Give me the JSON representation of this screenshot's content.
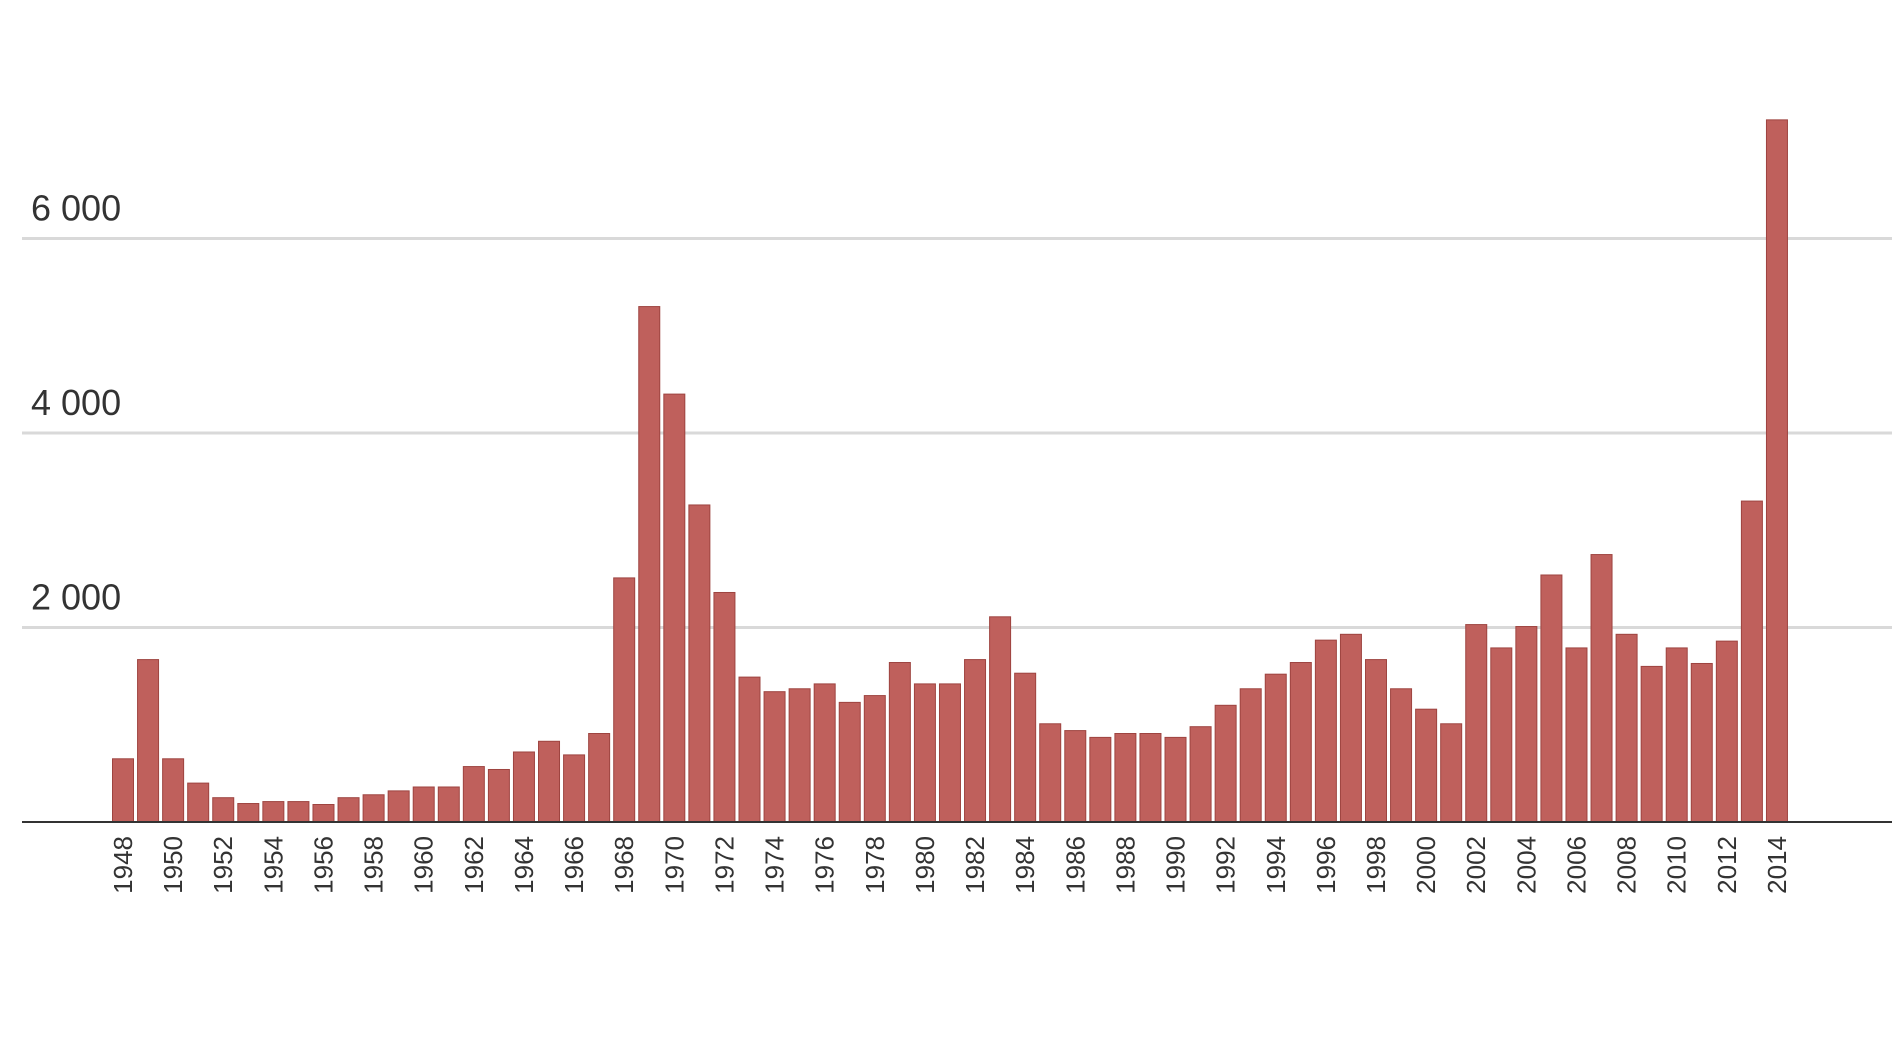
{
  "chart_data": {
    "type": "bar",
    "categories": [
      "1948",
      "1949",
      "1950",
      "1951",
      "1952",
      "1953",
      "1954",
      "1955",
      "1956",
      "1957",
      "1958",
      "1959",
      "1960",
      "1961",
      "1962",
      "1963",
      "1964",
      "1965",
      "1966",
      "1967",
      "1968",
      "1969",
      "1970",
      "1971",
      "1972",
      "1973",
      "1974",
      "1975",
      "1976",
      "1977",
      "1978",
      "1979",
      "1980",
      "1981",
      "1982",
      "1983",
      "1984",
      "1985",
      "1986",
      "1987",
      "1988",
      "1989",
      "1990",
      "1991",
      "1992",
      "1993",
      "1994",
      "1995",
      "1996",
      "1997",
      "1998",
      "1999",
      "2000",
      "2001",
      "2002",
      "2003",
      "2004",
      "2005",
      "2006",
      "2007",
      "2008",
      "2009",
      "2010",
      "2011",
      "2012",
      "2013",
      "2014"
    ],
    "values": [
      650,
      1670,
      650,
      400,
      250,
      190,
      210,
      210,
      180,
      250,
      280,
      320,
      360,
      360,
      570,
      540,
      720,
      830,
      690,
      910,
      2510,
      5300,
      4400,
      3260,
      2360,
      1490,
      1340,
      1370,
      1420,
      1230,
      1300,
      1640,
      1420,
      1420,
      1670,
      2110,
      1530,
      1010,
      940,
      870,
      910,
      910,
      870,
      980,
      1200,
      1370,
      1520,
      1640,
      1870,
      1930,
      1670,
      1370,
      1160,
      1010,
      2030,
      1790,
      2010,
      2540,
      1790,
      2750,
      1930,
      1600,
      1790,
      1630,
      1860,
      3300,
      7220
    ],
    "x_tick_labels": [
      "1948",
      "1950",
      "1952",
      "1954",
      "1956",
      "1958",
      "1960",
      "1962",
      "1964",
      "1966",
      "1968",
      "1970",
      "1972",
      "1974",
      "1976",
      "1978",
      "1980",
      "1982",
      "1984",
      "1986",
      "1988",
      "1990",
      "1992",
      "1994",
      "1996",
      "1998",
      "2000",
      "2002",
      "2004",
      "2006",
      "2008",
      "2010",
      "2012",
      "2014"
    ],
    "y_tick_labels": [
      "2 000",
      "4 000",
      "6 000"
    ],
    "y_ticks": [
      2000,
      4000,
      6000
    ],
    "ylim": [
      0,
      7400
    ],
    "grid": true,
    "bar_color": "#bf605c"
  }
}
